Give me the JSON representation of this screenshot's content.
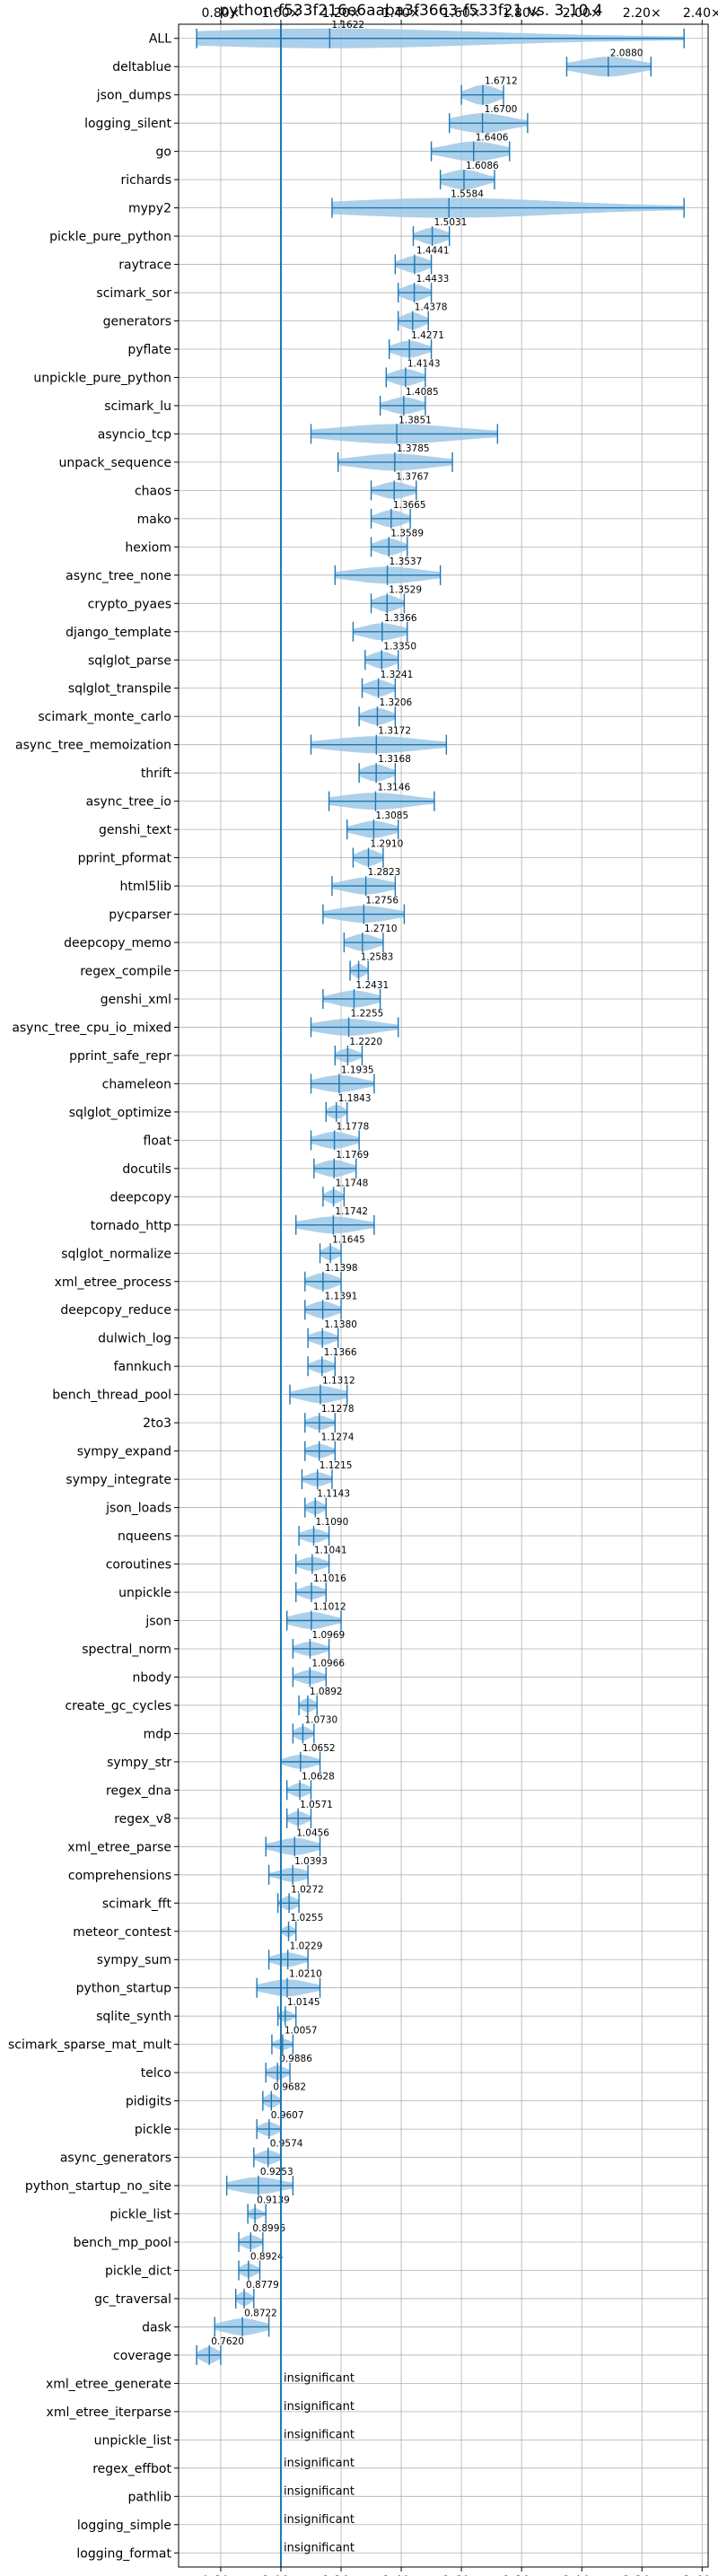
{
  "chart_data": {
    "type": "violin",
    "title": "python-f533f216e6aaba3f3663-f533f21 vs. 3.10.4",
    "xlim": [
      0.66,
      2.42
    ],
    "xticks": [
      0.8,
      1.0,
      1.2,
      1.4,
      1.6,
      1.8,
      2.0,
      2.2,
      2.4
    ],
    "xtick_labels": [
      "0.80×",
      "1.00×",
      "1.20×",
      "1.40×",
      "1.60×",
      "1.80×",
      "2.00×",
      "2.20×",
      "2.40×"
    ],
    "reference_line": 1.0,
    "grid": true,
    "insignificant_label": "insignificant",
    "colors": {
      "violin": "#9ec8e6",
      "line": "#1f77b4",
      "grid": "#b0b0b0"
    },
    "benchmarks": [
      {
        "name": "ALL",
        "value": 1.1622,
        "label": "1.1622",
        "lo": 0.72,
        "hi": 2.34,
        "w": 0.7
      },
      {
        "name": "deltablue",
        "value": 2.088,
        "label": "2.0880",
        "lo": 1.95,
        "hi": 2.23,
        "w": 0.7
      },
      {
        "name": "json_dumps",
        "value": 1.6712,
        "label": "1.6712",
        "lo": 1.6,
        "hi": 1.74,
        "w": 0.7
      },
      {
        "name": "logging_silent",
        "value": 1.67,
        "label": "1.6700",
        "lo": 1.56,
        "hi": 1.82,
        "w": 0.7
      },
      {
        "name": "go",
        "value": 1.6406,
        "label": "1.6406",
        "lo": 1.5,
        "hi": 1.76,
        "w": 0.7
      },
      {
        "name": "richards",
        "value": 1.6086,
        "label": "1.6086",
        "lo": 1.53,
        "hi": 1.71,
        "w": 0.7
      },
      {
        "name": "mypy2",
        "value": 1.5584,
        "label": "1.5584",
        "lo": 1.17,
        "hi": 2.34,
        "w": 0.7
      },
      {
        "name": "pickle_pure_python",
        "value": 1.5031,
        "label": "1.5031",
        "lo": 1.44,
        "hi": 1.56,
        "w": 0.6
      },
      {
        "name": "raytrace",
        "value": 1.4441,
        "label": "1.4441",
        "lo": 1.38,
        "hi": 1.5,
        "w": 0.6
      },
      {
        "name": "scimark_sor",
        "value": 1.4433,
        "label": "1.4433",
        "lo": 1.39,
        "hi": 1.5,
        "w": 0.6
      },
      {
        "name": "generators",
        "value": 1.4378,
        "label": "1.4378",
        "lo": 1.39,
        "hi": 1.49,
        "w": 0.6
      },
      {
        "name": "pyflate",
        "value": 1.4271,
        "label": "1.4271",
        "lo": 1.36,
        "hi": 1.5,
        "w": 0.6
      },
      {
        "name": "unpickle_pure_python",
        "value": 1.4143,
        "label": "1.4143",
        "lo": 1.35,
        "hi": 1.48,
        "w": 0.6
      },
      {
        "name": "scimark_lu",
        "value": 1.4085,
        "label": "1.4085",
        "lo": 1.33,
        "hi": 1.48,
        "w": 0.6
      },
      {
        "name": "asyncio_tcp",
        "value": 1.3851,
        "label": "1.3851",
        "lo": 1.1,
        "hi": 1.72,
        "w": 0.7
      },
      {
        "name": "unpack_sequence",
        "value": 1.3785,
        "label": "1.3785",
        "lo": 1.19,
        "hi": 1.57,
        "w": 0.6
      },
      {
        "name": "chaos",
        "value": 1.3767,
        "label": "1.3767",
        "lo": 1.3,
        "hi": 1.45,
        "w": 0.6
      },
      {
        "name": "mako",
        "value": 1.3665,
        "label": "1.3665",
        "lo": 1.3,
        "hi": 1.43,
        "w": 0.6
      },
      {
        "name": "hexiom",
        "value": 1.3589,
        "label": "1.3589",
        "lo": 1.3,
        "hi": 1.42,
        "w": 0.6
      },
      {
        "name": "async_tree_none",
        "value": 1.3537,
        "label": "1.3537",
        "lo": 1.18,
        "hi": 1.53,
        "w": 0.6
      },
      {
        "name": "crypto_pyaes",
        "value": 1.3529,
        "label": "1.3529",
        "lo": 1.3,
        "hi": 1.41,
        "w": 0.6
      },
      {
        "name": "django_template",
        "value": 1.3366,
        "label": "1.3366",
        "lo": 1.24,
        "hi": 1.42,
        "w": 0.6
      },
      {
        "name": "sqlglot_parse",
        "value": 1.335,
        "label": "1.3350",
        "lo": 1.28,
        "hi": 1.39,
        "w": 0.6
      },
      {
        "name": "sqlglot_transpile",
        "value": 1.3241,
        "label": "1.3241",
        "lo": 1.27,
        "hi": 1.38,
        "w": 0.6
      },
      {
        "name": "scimark_monte_carlo",
        "value": 1.3206,
        "label": "1.3206",
        "lo": 1.26,
        "hi": 1.38,
        "w": 0.6
      },
      {
        "name": "async_tree_memoization",
        "value": 1.3172,
        "label": "1.3172",
        "lo": 1.1,
        "hi": 1.55,
        "w": 0.6
      },
      {
        "name": "thrift",
        "value": 1.3168,
        "label": "1.3168",
        "lo": 1.26,
        "hi": 1.38,
        "w": 0.6
      },
      {
        "name": "async_tree_io",
        "value": 1.3146,
        "label": "1.3146",
        "lo": 1.16,
        "hi": 1.51,
        "w": 0.6
      },
      {
        "name": "genshi_text",
        "value": 1.3085,
        "label": "1.3085",
        "lo": 1.22,
        "hi": 1.39,
        "w": 0.6
      },
      {
        "name": "pprint_pformat",
        "value": 1.291,
        "label": "1.2910",
        "lo": 1.24,
        "hi": 1.34,
        "w": 0.6
      },
      {
        "name": "html5lib",
        "value": 1.2823,
        "label": "1.2823",
        "lo": 1.17,
        "hi": 1.38,
        "w": 0.6
      },
      {
        "name": "pycparser",
        "value": 1.2756,
        "label": "1.2756",
        "lo": 1.14,
        "hi": 1.41,
        "w": 0.6
      },
      {
        "name": "deepcopy_memo",
        "value": 1.271,
        "label": "1.2710",
        "lo": 1.21,
        "hi": 1.34,
        "w": 0.6
      },
      {
        "name": "regex_compile",
        "value": 1.2583,
        "label": "1.2583",
        "lo": 1.23,
        "hi": 1.29,
        "w": 0.5
      },
      {
        "name": "genshi_xml",
        "value": 1.2431,
        "label": "1.2431",
        "lo": 1.14,
        "hi": 1.33,
        "w": 0.6
      },
      {
        "name": "async_tree_cpu_io_mixed",
        "value": 1.2255,
        "label": "1.2255",
        "lo": 1.1,
        "hi": 1.39,
        "w": 0.6
      },
      {
        "name": "pprint_safe_repr",
        "value": 1.222,
        "label": "1.2220",
        "lo": 1.18,
        "hi": 1.27,
        "w": 0.5
      },
      {
        "name": "chameleon",
        "value": 1.1935,
        "label": "1.1935",
        "lo": 1.1,
        "hi": 1.31,
        "w": 0.6
      },
      {
        "name": "sqlglot_optimize",
        "value": 1.1843,
        "label": "1.1843",
        "lo": 1.15,
        "hi": 1.22,
        "w": 0.5
      },
      {
        "name": "float",
        "value": 1.1778,
        "label": "1.1778",
        "lo": 1.1,
        "hi": 1.26,
        "w": 0.6
      },
      {
        "name": "docutils",
        "value": 1.1769,
        "label": "1.1769",
        "lo": 1.11,
        "hi": 1.25,
        "w": 0.6
      },
      {
        "name": "deepcopy",
        "value": 1.1748,
        "label": "1.1748",
        "lo": 1.14,
        "hi": 1.21,
        "w": 0.5
      },
      {
        "name": "tornado_http",
        "value": 1.1742,
        "label": "1.1742",
        "lo": 1.05,
        "hi": 1.31,
        "w": 0.6
      },
      {
        "name": "sqlglot_normalize",
        "value": 1.1645,
        "label": "1.1645",
        "lo": 1.13,
        "hi": 1.2,
        "w": 0.5
      },
      {
        "name": "xml_etree_process",
        "value": 1.1398,
        "label": "1.1398",
        "lo": 1.08,
        "hi": 1.2,
        "w": 0.6
      },
      {
        "name": "deepcopy_reduce",
        "value": 1.1391,
        "label": "1.1391",
        "lo": 1.08,
        "hi": 1.2,
        "w": 0.6
      },
      {
        "name": "dulwich_log",
        "value": 1.138,
        "label": "1.1380",
        "lo": 1.09,
        "hi": 1.19,
        "w": 0.5
      },
      {
        "name": "fannkuch",
        "value": 1.1366,
        "label": "1.1366",
        "lo": 1.09,
        "hi": 1.18,
        "w": 0.5
      },
      {
        "name": "bench_thread_pool",
        "value": 1.1312,
        "label": "1.1312",
        "lo": 1.03,
        "hi": 1.22,
        "w": 0.6
      },
      {
        "name": "2to3",
        "value": 1.1278,
        "label": "1.1278",
        "lo": 1.08,
        "hi": 1.18,
        "w": 0.5
      },
      {
        "name": "sympy_expand",
        "value": 1.1274,
        "label": "1.1274",
        "lo": 1.08,
        "hi": 1.18,
        "w": 0.5
      },
      {
        "name": "sympy_integrate",
        "value": 1.1215,
        "label": "1.1215",
        "lo": 1.07,
        "hi": 1.17,
        "w": 0.5
      },
      {
        "name": "json_loads",
        "value": 1.1143,
        "label": "1.1143",
        "lo": 1.08,
        "hi": 1.15,
        "w": 0.5
      },
      {
        "name": "nqueens",
        "value": 1.109,
        "label": "1.1090",
        "lo": 1.06,
        "hi": 1.16,
        "w": 0.5
      },
      {
        "name": "coroutines",
        "value": 1.1041,
        "label": "1.1041",
        "lo": 1.05,
        "hi": 1.16,
        "w": 0.5
      },
      {
        "name": "unpickle",
        "value": 1.1016,
        "label": "1.1016",
        "lo": 1.05,
        "hi": 1.15,
        "w": 0.5
      },
      {
        "name": "json",
        "value": 1.1012,
        "label": "1.1012",
        "lo": 1.02,
        "hi": 1.2,
        "w": 0.6
      },
      {
        "name": "spectral_norm",
        "value": 1.0969,
        "label": "1.0969",
        "lo": 1.04,
        "hi": 1.16,
        "w": 0.5
      },
      {
        "name": "nbody",
        "value": 1.0966,
        "label": "1.0966",
        "lo": 1.04,
        "hi": 1.15,
        "w": 0.5
      },
      {
        "name": "create_gc_cycles",
        "value": 1.0892,
        "label": "1.0892",
        "lo": 1.06,
        "hi": 1.12,
        "w": 0.5
      },
      {
        "name": "mdp",
        "value": 1.073,
        "label": "1.0730",
        "lo": 1.04,
        "hi": 1.11,
        "w": 0.5
      },
      {
        "name": "sympy_str",
        "value": 1.0652,
        "label": "1.0652",
        "lo": 1.0,
        "hi": 1.13,
        "w": 0.5
      },
      {
        "name": "regex_dna",
        "value": 1.0628,
        "label": "1.0628",
        "lo": 1.02,
        "hi": 1.1,
        "w": 0.5
      },
      {
        "name": "regex_v8",
        "value": 1.0571,
        "label": "1.0571",
        "lo": 1.02,
        "hi": 1.1,
        "w": 0.5
      },
      {
        "name": "xml_etree_parse",
        "value": 1.0456,
        "label": "1.0456",
        "lo": 0.95,
        "hi": 1.13,
        "w": 0.6
      },
      {
        "name": "comprehensions",
        "value": 1.0393,
        "label": "1.0393",
        "lo": 0.96,
        "hi": 1.09,
        "w": 0.5
      },
      {
        "name": "scimark_fft",
        "value": 1.0272,
        "label": "1.0272",
        "lo": 0.99,
        "hi": 1.06,
        "w": 0.5
      },
      {
        "name": "meteor_contest",
        "value": 1.0255,
        "label": "1.0255",
        "lo": 1.0,
        "hi": 1.05,
        "w": 0.4
      },
      {
        "name": "sympy_sum",
        "value": 1.0229,
        "label": "1.0229",
        "lo": 0.96,
        "hi": 1.09,
        "w": 0.5
      },
      {
        "name": "python_startup",
        "value": 1.021,
        "label": "1.0210",
        "lo": 0.92,
        "hi": 1.13,
        "w": 0.6
      },
      {
        "name": "sqlite_synth",
        "value": 1.0145,
        "label": "1.0145",
        "lo": 0.99,
        "hi": 1.05,
        "w": 0.4
      },
      {
        "name": "scimark_sparse_mat_mult",
        "value": 1.0057,
        "label": "1.0057",
        "lo": 0.97,
        "hi": 1.04,
        "w": 0.4
      },
      {
        "name": "telco",
        "value": 0.9886,
        "label": "0.9886",
        "lo": 0.95,
        "hi": 1.03,
        "w": 0.5
      },
      {
        "name": "pidigits",
        "value": 0.9682,
        "label": "0.9682",
        "lo": 0.94,
        "hi": 1.0,
        "w": 0.5
      },
      {
        "name": "pickle",
        "value": 0.9607,
        "label": "0.9607",
        "lo": 0.92,
        "hi": 1.0,
        "w": 0.5
      },
      {
        "name": "async_generators",
        "value": 0.9574,
        "label": "0.9574",
        "lo": 0.91,
        "hi": 1.0,
        "w": 0.5
      },
      {
        "name": "python_startup_no_site",
        "value": 0.9253,
        "label": "0.9253",
        "lo": 0.82,
        "hi": 1.04,
        "w": 0.6
      },
      {
        "name": "pickle_list",
        "value": 0.9139,
        "label": "0.9139",
        "lo": 0.89,
        "hi": 0.95,
        "w": 0.4
      },
      {
        "name": "bench_mp_pool",
        "value": 0.8996,
        "label": "0.8996",
        "lo": 0.86,
        "hi": 0.94,
        "w": 0.5
      },
      {
        "name": "pickle_dict",
        "value": 0.8924,
        "label": "0.8924",
        "lo": 0.86,
        "hi": 0.93,
        "w": 0.5
      },
      {
        "name": "gc_traversal",
        "value": 0.8779,
        "label": "0.8779",
        "lo": 0.85,
        "hi": 0.91,
        "w": 0.5
      },
      {
        "name": "dask",
        "value": 0.8722,
        "label": "0.8722",
        "lo": 0.78,
        "hi": 0.96,
        "w": 0.6
      },
      {
        "name": "coverage",
        "value": 0.762,
        "label": "0.7620",
        "lo": 0.72,
        "hi": 0.8,
        "w": 0.6
      },
      {
        "name": "xml_etree_generate",
        "insignificant": true
      },
      {
        "name": "xml_etree_iterparse",
        "insignificant": true
      },
      {
        "name": "unpickle_list",
        "insignificant": true
      },
      {
        "name": "regex_effbot",
        "insignificant": true
      },
      {
        "name": "pathlib",
        "insignificant": true
      },
      {
        "name": "logging_simple",
        "insignificant": true
      },
      {
        "name": "logging_format",
        "insignificant": true
      }
    ]
  }
}
